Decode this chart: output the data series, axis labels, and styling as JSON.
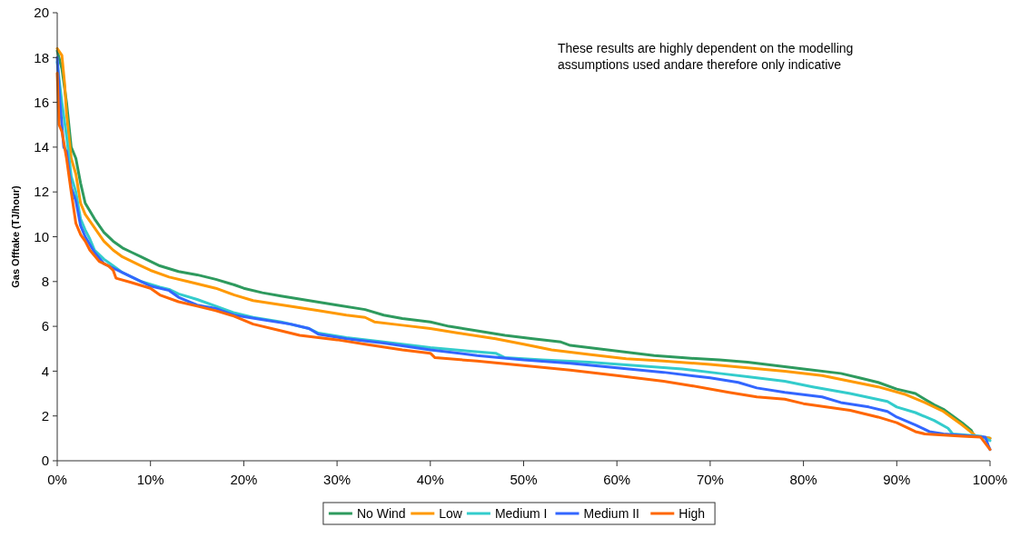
{
  "chart_data": {
    "type": "line",
    "ylabel": "Gas Offtake (TJ/hour)",
    "annotations": [
      "These results are highly dependent on the modelling assumptions used andare therefore only indicative"
    ],
    "xlim": [
      0,
      100
    ],
    "xticks": [
      {
        "value": 0,
        "label": "0%"
      },
      {
        "value": 10,
        "label": "10%"
      },
      {
        "value": 20,
        "label": "20%"
      },
      {
        "value": 30,
        "label": "30%"
      },
      {
        "value": 40,
        "label": "40%"
      },
      {
        "value": 50,
        "label": "50%"
      },
      {
        "value": 60,
        "label": "60%"
      },
      {
        "value": 70,
        "label": "70%"
      },
      {
        "value": 80,
        "label": "80%"
      },
      {
        "value": 90,
        "label": "90%"
      },
      {
        "value": 100,
        "label": "100%"
      }
    ],
    "ylim": [
      0,
      20
    ],
    "yticks": [
      0,
      2,
      4,
      6,
      8,
      10,
      12,
      14,
      16,
      18,
      20
    ],
    "grid": false,
    "legend": "bottom",
    "marker": "none",
    "line_style": "solid",
    "series": [
      {
        "name": "No Wind",
        "color": "#2e9a5e",
        "x": [
          0,
          0.5,
          1,
          1.5,
          2,
          2.5,
          3,
          4,
          5,
          6,
          7,
          8,
          9,
          10,
          11,
          13,
          15,
          17,
          19,
          20,
          22,
          24,
          27,
          30,
          33,
          35,
          37,
          40,
          42,
          45,
          48,
          51,
          54,
          55,
          58,
          61,
          64,
          67,
          71,
          74,
          77,
          80,
          84,
          86,
          88,
          90,
          92,
          93,
          94,
          95,
          96,
          97,
          98,
          98.3,
          100
        ],
        "values": [
          18.3,
          17.5,
          16,
          14,
          13.5,
          12.4,
          11.5,
          10.8,
          10.2,
          9.8,
          9.5,
          9.3,
          9.1,
          8.9,
          8.7,
          8.45,
          8.3,
          8.1,
          7.85,
          7.7,
          7.5,
          7.35,
          7.15,
          6.95,
          6.75,
          6.5,
          6.35,
          6.2,
          6.0,
          5.8,
          5.6,
          5.45,
          5.3,
          5.15,
          5.0,
          4.85,
          4.7,
          4.6,
          4.5,
          4.4,
          4.25,
          4.1,
          3.9,
          3.7,
          3.5,
          3.2,
          3.0,
          2.75,
          2.5,
          2.3,
          2.0,
          1.7,
          1.35,
          1.1,
          1.0
        ]
      },
      {
        "name": "Low",
        "color": "#ff9900",
        "x": [
          0,
          0.5,
          0.8,
          1,
          1.5,
          2,
          2.5,
          3,
          4,
          5,
          6,
          7,
          8,
          9,
          10,
          12,
          14,
          17,
          19,
          21,
          25,
          28,
          31,
          33,
          34,
          37,
          40,
          43,
          47,
          50,
          53,
          57,
          61,
          65,
          70,
          74,
          78,
          82,
          85,
          88,
          91,
          93,
          95,
          97,
          98.5,
          100
        ],
        "values": [
          18.4,
          18.1,
          16.8,
          15.5,
          13.5,
          12.8,
          11.5,
          11.0,
          10.4,
          9.8,
          9.4,
          9.1,
          8.9,
          8.7,
          8.5,
          8.2,
          8.0,
          7.7,
          7.4,
          7.15,
          6.9,
          6.7,
          6.5,
          6.4,
          6.2,
          6.05,
          5.9,
          5.7,
          5.45,
          5.2,
          4.95,
          4.75,
          4.55,
          4.45,
          4.3,
          4.15,
          4.0,
          3.8,
          3.55,
          3.3,
          2.95,
          2.6,
          2.2,
          1.6,
          1.1,
          1.0
        ]
      },
      {
        "name": "Medium I",
        "color": "#33cccc",
        "x": [
          0,
          0.5,
          1,
          1.5,
          2,
          2.5,
          3,
          3.5,
          4,
          5,
          6,
          7,
          9,
          11,
          12,
          13,
          15,
          17,
          19,
          21,
          24,
          27,
          28,
          31,
          35,
          40,
          44,
          47,
          48,
          52,
          57,
          62,
          67,
          71,
          74,
          78,
          81,
          85,
          89,
          90,
          92,
          94,
          95.5,
          96,
          99,
          100
        ],
        "values": [
          17.8,
          16,
          14.5,
          12.7,
          12.0,
          10.8,
          10.3,
          9.9,
          9.4,
          9.0,
          8.7,
          8.4,
          8.0,
          7.75,
          7.65,
          7.45,
          7.2,
          6.9,
          6.6,
          6.4,
          6.2,
          5.9,
          5.7,
          5.5,
          5.3,
          5.05,
          4.9,
          4.8,
          4.6,
          4.5,
          4.4,
          4.25,
          4.1,
          3.9,
          3.75,
          3.55,
          3.3,
          3.0,
          2.65,
          2.4,
          2.15,
          1.8,
          1.45,
          1.2,
          1.1,
          0.9
        ]
      },
      {
        "name": "Medium II",
        "color": "#3366ff",
        "x": [
          0,
          0.3,
          0.7,
          1,
          1.5,
          2,
          2.5,
          3,
          4,
          5,
          6,
          8,
          10,
          12,
          13,
          15,
          17,
          19,
          22,
          25,
          27,
          28,
          31,
          35,
          40,
          45,
          50,
          55,
          60,
          65,
          70,
          73,
          75,
          78,
          82,
          84,
          87,
          89,
          90,
          92,
          93.5,
          95,
          99.5,
          99.8,
          100
        ],
        "values": [
          18.0,
          16,
          14,
          13.8,
          12.2,
          11.6,
          10.5,
          10.0,
          9.3,
          8.8,
          8.6,
          8.2,
          7.8,
          7.6,
          7.3,
          6.95,
          6.8,
          6.5,
          6.3,
          6.1,
          5.9,
          5.65,
          5.45,
          5.25,
          4.95,
          4.7,
          4.5,
          4.35,
          4.15,
          3.95,
          3.7,
          3.5,
          3.25,
          3.05,
          2.85,
          2.6,
          2.4,
          2.2,
          1.95,
          1.6,
          1.3,
          1.2,
          1.05,
          0.7,
          0.5
        ]
      },
      {
        "name": "High",
        "color": "#ff6600",
        "x": [
          0,
          0.2,
          0.5,
          1,
          1.5,
          2,
          2.5,
          3,
          3.5,
          4.5,
          5.5,
          6,
          6.3,
          8,
          10,
          11,
          13,
          15,
          17,
          19,
          21,
          24,
          26,
          30,
          33,
          37,
          40,
          40.5,
          45,
          50,
          55,
          60,
          65,
          68,
          72,
          75,
          78,
          80,
          85,
          88,
          90,
          92,
          93,
          97,
          99,
          100
        ],
        "values": [
          17.3,
          15,
          14.7,
          13.5,
          12.0,
          10.6,
          10.1,
          9.8,
          9.4,
          8.9,
          8.7,
          8.5,
          8.15,
          7.95,
          7.7,
          7.4,
          7.1,
          6.9,
          6.7,
          6.45,
          6.1,
          5.8,
          5.6,
          5.4,
          5.2,
          4.95,
          4.8,
          4.6,
          4.45,
          4.25,
          4.05,
          3.8,
          3.55,
          3.35,
          3.05,
          2.85,
          2.75,
          2.55,
          2.25,
          1.95,
          1.7,
          1.3,
          1.2,
          1.1,
          1.05,
          0.5
        ]
      }
    ]
  }
}
